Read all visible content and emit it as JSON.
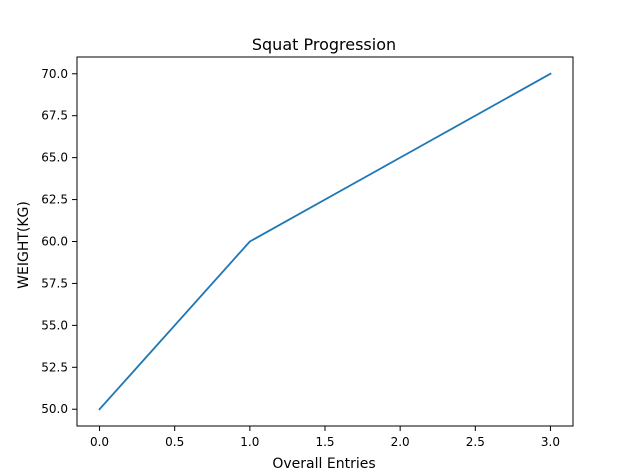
{
  "chart_data": {
    "type": "line",
    "title": "Squat Progression",
    "xlabel": "Overall Entries",
    "ylabel": "WEIGHT(KG)",
    "x": [
      0,
      1,
      2,
      3
    ],
    "series": [
      {
        "values": [
          50,
          60,
          65,
          70
        ],
        "color": "#1f77b4"
      }
    ],
    "xlim": [
      -0.15,
      3.15
    ],
    "ylim": [
      49,
      71
    ],
    "xticks": [
      "0.0",
      "0.5",
      "1.0",
      "1.5",
      "2.0",
      "2.5",
      "3.0"
    ],
    "yticks": [
      "50.0",
      "52.5",
      "55.0",
      "57.5",
      "60.0",
      "62.5",
      "65.0",
      "67.5",
      "70.0"
    ],
    "grid": false,
    "legend": "none"
  }
}
